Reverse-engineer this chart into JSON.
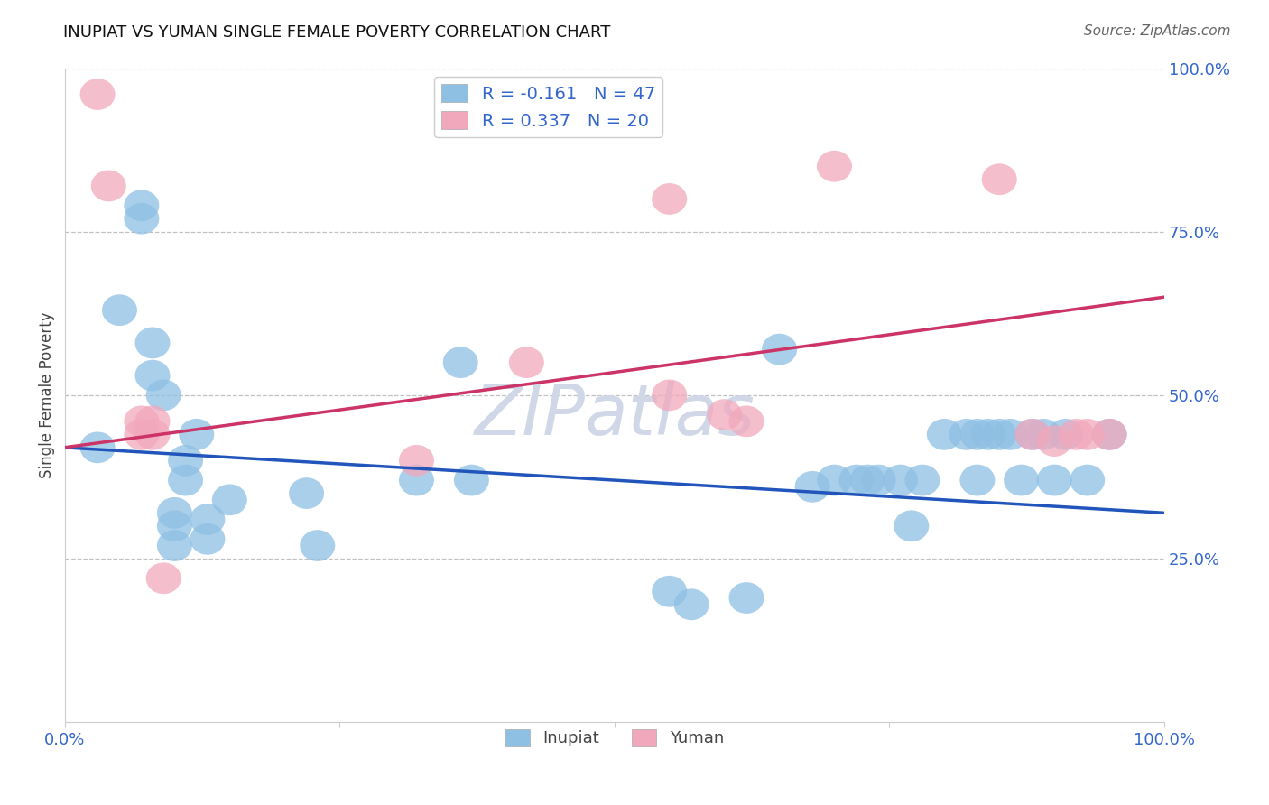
{
  "title": "INUPIAT VS YUMAN SINGLE FEMALE POVERTY CORRELATION CHART",
  "source": "Source: ZipAtlas.com",
  "ylabel": "Single Female Poverty",
  "xlim": [
    0,
    1
  ],
  "ylim": [
    0,
    1
  ],
  "inupiat_color": "#8ec0e4",
  "inupiat_edge_color": "#8ec0e4",
  "yuman_color": "#f2a8bc",
  "yuman_edge_color": "#f2a8bc",
  "inupiat_line_color": "#2255bb",
  "yuman_line_color": "#cc3366",
  "inupiat_R": -0.161,
  "inupiat_N": 47,
  "yuman_R": 0.337,
  "yuman_N": 20,
  "legend_text_color": "#3366cc",
  "axis_text_color": "#3366cc",
  "watermark_color": "#d0d8e8",
  "inupiat_x": [
    0.03,
    0.05,
    0.07,
    0.07,
    0.08,
    0.08,
    0.09,
    0.1,
    0.1,
    0.1,
    0.11,
    0.11,
    0.12,
    0.13,
    0.13,
    0.15,
    0.22,
    0.23,
    0.32,
    0.36,
    0.37,
    0.55,
    0.57,
    0.62,
    0.65,
    0.68,
    0.7,
    0.72,
    0.73,
    0.74,
    0.76,
    0.77,
    0.78,
    0.8,
    0.82,
    0.83,
    0.83,
    0.84,
    0.85,
    0.86,
    0.87,
    0.88,
    0.89,
    0.9,
    0.91,
    0.93,
    0.95
  ],
  "inupiat_y": [
    0.42,
    0.63,
    0.77,
    0.79,
    0.53,
    0.58,
    0.5,
    0.27,
    0.3,
    0.32,
    0.37,
    0.4,
    0.44,
    0.28,
    0.31,
    0.34,
    0.35,
    0.27,
    0.37,
    0.55,
    0.37,
    0.2,
    0.18,
    0.19,
    0.57,
    0.36,
    0.37,
    0.37,
    0.37,
    0.37,
    0.37,
    0.3,
    0.37,
    0.44,
    0.44,
    0.44,
    0.37,
    0.44,
    0.44,
    0.44,
    0.37,
    0.44,
    0.44,
    0.37,
    0.44,
    0.37,
    0.44
  ],
  "yuman_x": [
    0.03,
    0.04,
    0.07,
    0.07,
    0.08,
    0.08,
    0.09,
    0.32,
    0.42,
    0.55,
    0.55,
    0.6,
    0.62,
    0.7,
    0.85,
    0.88,
    0.9,
    0.92,
    0.93,
    0.95
  ],
  "yuman_y": [
    0.96,
    0.82,
    0.44,
    0.46,
    0.44,
    0.46,
    0.22,
    0.4,
    0.55,
    0.5,
    0.8,
    0.47,
    0.46,
    0.85,
    0.83,
    0.44,
    0.43,
    0.44,
    0.44,
    0.44
  ],
  "blue_trendline_x0": 0.0,
  "blue_trendline_y0": 0.42,
  "blue_trendline_x1": 1.0,
  "blue_trendline_y1": 0.32,
  "pink_trendline_x0": 0.0,
  "pink_trendline_y0": 0.42,
  "pink_trendline_x1": 1.0,
  "pink_trendline_y1": 0.65
}
